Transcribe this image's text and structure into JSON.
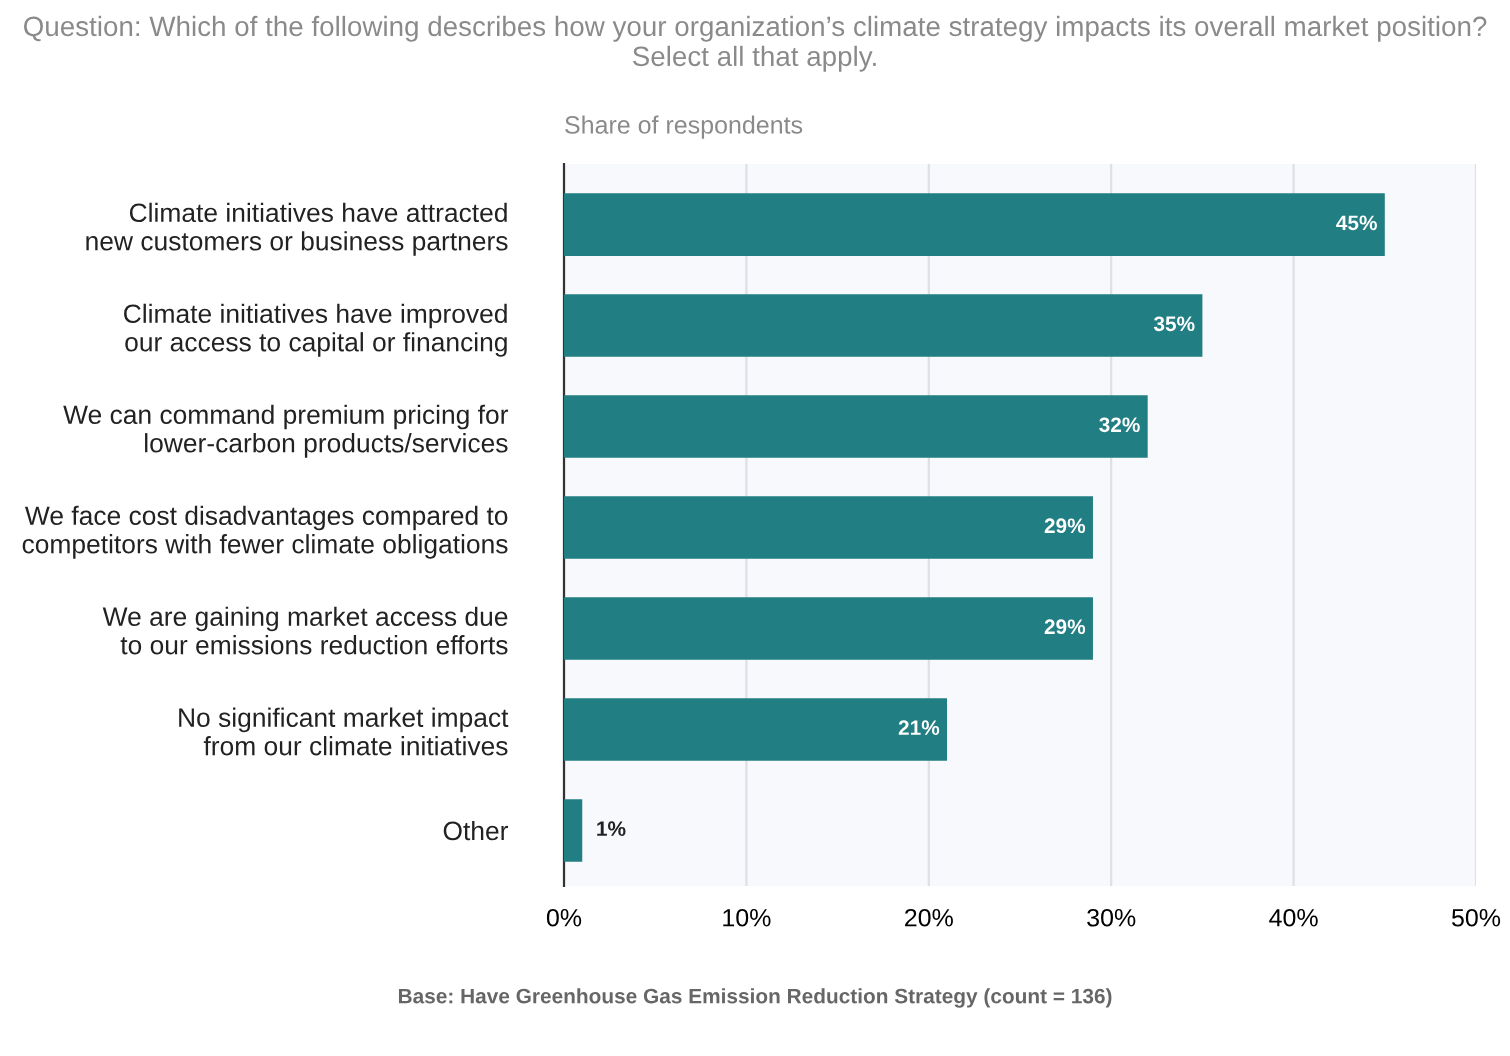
{
  "chart_data": {
    "type": "bar",
    "orientation": "horizontal",
    "title": "Question: Which of the following describes how your organization’s climate strategy impacts its overall market position? Select all that apply.",
    "xlabel": "Share of respondents",
    "categories": [
      "Climate initiatives have attracted\nnew customers or business partners",
      "Climate initiatives have improved\nour access to capital or financing",
      "We can command premium pricing for\nlower-carbon products/services",
      "We face cost disadvantages compared to\ncompetitors with fewer climate obligations",
      "We are gaining market access due\nto our emissions reduction efforts",
      "No significant market impact\nfrom our climate initiatives",
      "Other"
    ],
    "values": [
      45,
      35,
      32,
      29,
      29,
      21,
      1
    ],
    "color": "#217e82",
    "xlim": [
      0,
      50
    ],
    "xticks": [
      {
        "value": 0,
        "label": "0%"
      },
      {
        "value": 10,
        "label": "10%"
      },
      {
        "value": 20,
        "label": "20%"
      },
      {
        "value": 30,
        "label": "30%"
      },
      {
        "value": 40,
        "label": "40%"
      },
      {
        "value": 50,
        "label": "50%"
      }
    ],
    "grid": "x",
    "value_labels": [
      "45%",
      "35%",
      "32%",
      "29%",
      "29%",
      "21%",
      "1%"
    ],
    "annotations": [
      "Base: Have Greenhouse Gas Emission Reduction Strategy (count = 136)"
    ]
  }
}
